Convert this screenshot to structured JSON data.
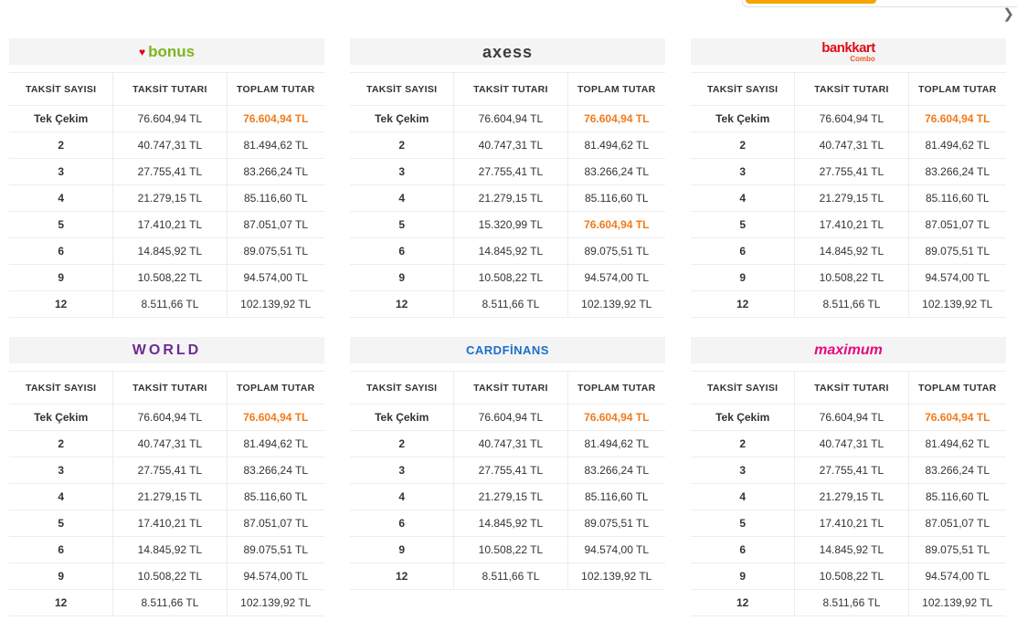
{
  "page": {
    "next_arrow_label": "❯"
  },
  "colors": {
    "highlight": "#f27a1a",
    "accent": "#f7a500"
  },
  "table_columns": [
    "TAKSİT SAYISI",
    "TAKSİT TUTARI",
    "TOPLAM TUTAR"
  ],
  "tables": [
    {
      "brand_id": "bonus",
      "brand_label": "bonus",
      "brand_icon": "heart-icon",
      "rows": [
        {
          "taksit_sayisi": "Tek Çekim",
          "taksit_tutari": "76.604,94 TL",
          "toplam_tutar": "76.604,94 TL",
          "highlight_total": true
        },
        {
          "taksit_sayisi": "2",
          "taksit_tutari": "40.747,31 TL",
          "toplam_tutar": "81.494,62 TL",
          "highlight_total": false
        },
        {
          "taksit_sayisi": "3",
          "taksit_tutari": "27.755,41 TL",
          "toplam_tutar": "83.266,24 TL",
          "highlight_total": false
        },
        {
          "taksit_sayisi": "4",
          "taksit_tutari": "21.279,15 TL",
          "toplam_tutar": "85.116,60 TL",
          "highlight_total": false
        },
        {
          "taksit_sayisi": "5",
          "taksit_tutari": "17.410,21 TL",
          "toplam_tutar": "87.051,07 TL",
          "highlight_total": false
        },
        {
          "taksit_sayisi": "6",
          "taksit_tutari": "14.845,92 TL",
          "toplam_tutar": "89.075,51 TL",
          "highlight_total": false
        },
        {
          "taksit_sayisi": "9",
          "taksit_tutari": "10.508,22 TL",
          "toplam_tutar": "94.574,00 TL",
          "highlight_total": false
        },
        {
          "taksit_sayisi": "12",
          "taksit_tutari": "8.511,66 TL",
          "toplam_tutar": "102.139,92 TL",
          "highlight_total": false
        }
      ]
    },
    {
      "brand_id": "axess",
      "brand_label": "axess",
      "rows": [
        {
          "taksit_sayisi": "Tek Çekim",
          "taksit_tutari": "76.604,94 TL",
          "toplam_tutar": "76.604,94 TL",
          "highlight_total": true
        },
        {
          "taksit_sayisi": "2",
          "taksit_tutari": "40.747,31 TL",
          "toplam_tutar": "81.494,62 TL",
          "highlight_total": false
        },
        {
          "taksit_sayisi": "3",
          "taksit_tutari": "27.755,41 TL",
          "toplam_tutar": "83.266,24 TL",
          "highlight_total": false
        },
        {
          "taksit_sayisi": "4",
          "taksit_tutari": "21.279,15 TL",
          "toplam_tutar": "85.116,60 TL",
          "highlight_total": false
        },
        {
          "taksit_sayisi": "5",
          "taksit_tutari": "15.320,99 TL",
          "toplam_tutar": "76.604,94 TL",
          "highlight_total": true
        },
        {
          "taksit_sayisi": "6",
          "taksit_tutari": "14.845,92 TL",
          "toplam_tutar": "89.075,51 TL",
          "highlight_total": false
        },
        {
          "taksit_sayisi": "9",
          "taksit_tutari": "10.508,22 TL",
          "toplam_tutar": "94.574,00 TL",
          "highlight_total": false
        },
        {
          "taksit_sayisi": "12",
          "taksit_tutari": "8.511,66 TL",
          "toplam_tutar": "102.139,92 TL",
          "highlight_total": false
        }
      ]
    },
    {
      "brand_id": "bankkart",
      "brand_label": "bankkart",
      "brand_sublabel": "Combo",
      "rows": [
        {
          "taksit_sayisi": "Tek Çekim",
          "taksit_tutari": "76.604,94 TL",
          "toplam_tutar": "76.604,94 TL",
          "highlight_total": true
        },
        {
          "taksit_sayisi": "2",
          "taksit_tutari": "40.747,31 TL",
          "toplam_tutar": "81.494,62 TL",
          "highlight_total": false
        },
        {
          "taksit_sayisi": "3",
          "taksit_tutari": "27.755,41 TL",
          "toplam_tutar": "83.266,24 TL",
          "highlight_total": false
        },
        {
          "taksit_sayisi": "4",
          "taksit_tutari": "21.279,15 TL",
          "toplam_tutar": "85.116,60 TL",
          "highlight_total": false
        },
        {
          "taksit_sayisi": "5",
          "taksit_tutari": "17.410,21 TL",
          "toplam_tutar": "87.051,07 TL",
          "highlight_total": false
        },
        {
          "taksit_sayisi": "6",
          "taksit_tutari": "14.845,92 TL",
          "toplam_tutar": "89.075,51 TL",
          "highlight_total": false
        },
        {
          "taksit_sayisi": "9",
          "taksit_tutari": "10.508,22 TL",
          "toplam_tutar": "94.574,00 TL",
          "highlight_total": false
        },
        {
          "taksit_sayisi": "12",
          "taksit_tutari": "8.511,66 TL",
          "toplam_tutar": "102.139,92 TL",
          "highlight_total": false
        }
      ]
    },
    {
      "brand_id": "world",
      "brand_label": "WORLD",
      "rows": [
        {
          "taksit_sayisi": "Tek Çekim",
          "taksit_tutari": "76.604,94 TL",
          "toplam_tutar": "76.604,94 TL",
          "highlight_total": true
        },
        {
          "taksit_sayisi": "2",
          "taksit_tutari": "40.747,31 TL",
          "toplam_tutar": "81.494,62 TL",
          "highlight_total": false
        },
        {
          "taksit_sayisi": "3",
          "taksit_tutari": "27.755,41 TL",
          "toplam_tutar": "83.266,24 TL",
          "highlight_total": false
        },
        {
          "taksit_sayisi": "4",
          "taksit_tutari": "21.279,15 TL",
          "toplam_tutar": "85.116,60 TL",
          "highlight_total": false
        },
        {
          "taksit_sayisi": "5",
          "taksit_tutari": "17.410,21 TL",
          "toplam_tutar": "87.051,07 TL",
          "highlight_total": false
        },
        {
          "taksit_sayisi": "6",
          "taksit_tutari": "14.845,92 TL",
          "toplam_tutar": "89.075,51 TL",
          "highlight_total": false
        },
        {
          "taksit_sayisi": "9",
          "taksit_tutari": "10.508,22 TL",
          "toplam_tutar": "94.574,00 TL",
          "highlight_total": false
        },
        {
          "taksit_sayisi": "12",
          "taksit_tutari": "8.511,66 TL",
          "toplam_tutar": "102.139,92 TL",
          "highlight_total": false
        }
      ]
    },
    {
      "brand_id": "cardfinans",
      "brand_label": "CARDFİNANS",
      "rows": [
        {
          "taksit_sayisi": "Tek Çekim",
          "taksit_tutari": "76.604,94 TL",
          "toplam_tutar": "76.604,94 TL",
          "highlight_total": true
        },
        {
          "taksit_sayisi": "2",
          "taksit_tutari": "40.747,31 TL",
          "toplam_tutar": "81.494,62 TL",
          "highlight_total": false
        },
        {
          "taksit_sayisi": "3",
          "taksit_tutari": "27.755,41 TL",
          "toplam_tutar": "83.266,24 TL",
          "highlight_total": false
        },
        {
          "taksit_sayisi": "4",
          "taksit_tutari": "21.279,15 TL",
          "toplam_tutar": "85.116,60 TL",
          "highlight_total": false
        },
        {
          "taksit_sayisi": "6",
          "taksit_tutari": "14.845,92 TL",
          "toplam_tutar": "89.075,51 TL",
          "highlight_total": false
        },
        {
          "taksit_sayisi": "9",
          "taksit_tutari": "10.508,22 TL",
          "toplam_tutar": "94.574,00 TL",
          "highlight_total": false
        },
        {
          "taksit_sayisi": "12",
          "taksit_tutari": "8.511,66 TL",
          "toplam_tutar": "102.139,92 TL",
          "highlight_total": false
        }
      ]
    },
    {
      "brand_id": "maximum",
      "brand_label": "maximum",
      "rows": [
        {
          "taksit_sayisi": "Tek Çekim",
          "taksit_tutari": "76.604,94 TL",
          "toplam_tutar": "76.604,94 TL",
          "highlight_total": true
        },
        {
          "taksit_sayisi": "2",
          "taksit_tutari": "40.747,31 TL",
          "toplam_tutar": "81.494,62 TL",
          "highlight_total": false
        },
        {
          "taksit_sayisi": "3",
          "taksit_tutari": "27.755,41 TL",
          "toplam_tutar": "83.266,24 TL",
          "highlight_total": false
        },
        {
          "taksit_sayisi": "4",
          "taksit_tutari": "21.279,15 TL",
          "toplam_tutar": "85.116,60 TL",
          "highlight_total": false
        },
        {
          "taksit_sayisi": "5",
          "taksit_tutari": "17.410,21 TL",
          "toplam_tutar": "87.051,07 TL",
          "highlight_total": false
        },
        {
          "taksit_sayisi": "6",
          "taksit_tutari": "14.845,92 TL",
          "toplam_tutar": "89.075,51 TL",
          "highlight_total": false
        },
        {
          "taksit_sayisi": "9",
          "taksit_tutari": "10.508,22 TL",
          "toplam_tutar": "94.574,00 TL",
          "highlight_total": false
        },
        {
          "taksit_sayisi": "12",
          "taksit_tutari": "8.511,66 TL",
          "toplam_tutar": "102.139,92 TL",
          "highlight_total": false
        }
      ]
    }
  ]
}
